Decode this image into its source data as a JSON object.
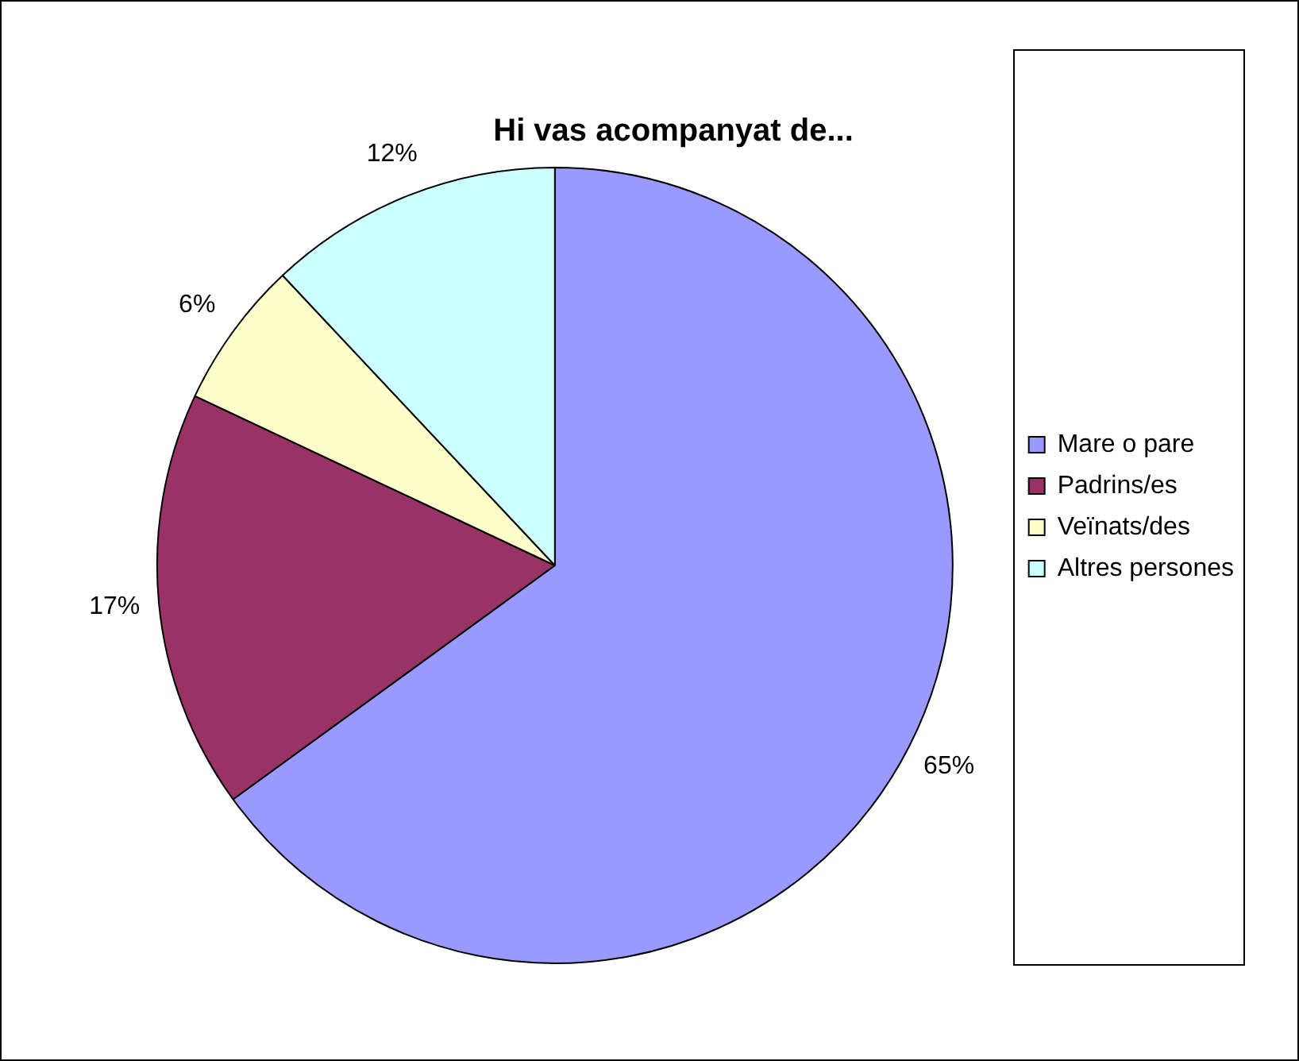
{
  "chart_data": {
    "type": "pie",
    "title": "Hi vas acompanyat de...",
    "categories": [
      "Mare o pare",
      "Padrins/es",
      "Veïnats/des",
      "Altres persones"
    ],
    "values": [
      65,
      17,
      6,
      12
    ],
    "colors": [
      "#9999ff",
      "#993366",
      "#ffffcc",
      "#ccffff"
    ],
    "value_labels": [
      "65%",
      "17%",
      "6%",
      "12%"
    ],
    "legend": "right"
  }
}
